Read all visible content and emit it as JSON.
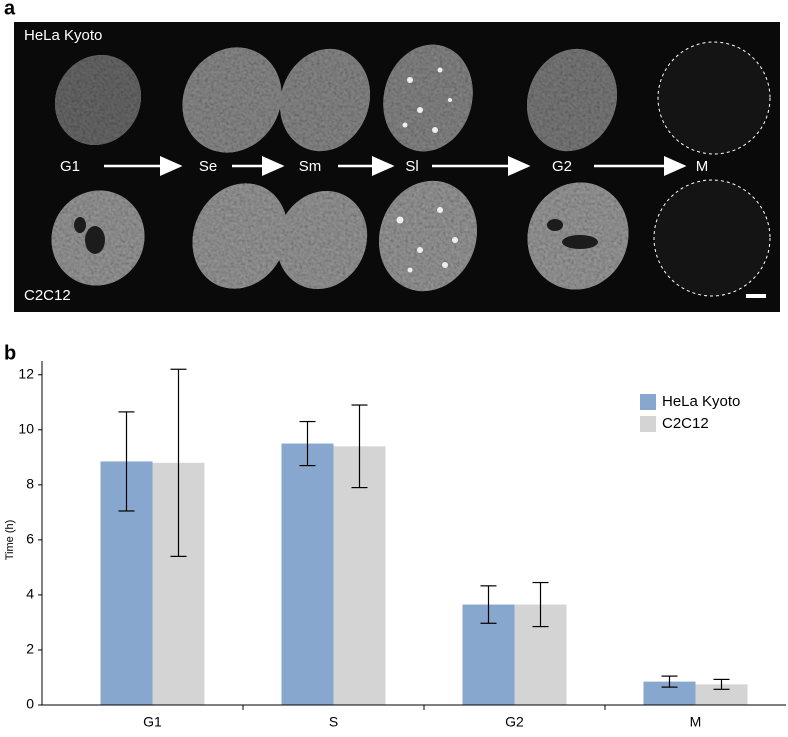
{
  "panel_a": {
    "label": "a",
    "cell_lines": [
      "HeLa Kyoto",
      "C2C12"
    ],
    "phases": [
      "G1",
      "Se",
      "Sm",
      "Sl",
      "G2",
      "M"
    ]
  },
  "panel_b": {
    "label": "b"
  },
  "chart_data": {
    "type": "bar",
    "y_label": "Time (h)",
    "categories": [
      "G1",
      "S",
      "G2",
      "M"
    ],
    "series": [
      {
        "name": "HeLa Kyoto",
        "color": "#87a7cf",
        "values": [
          8.85,
          9.5,
          3.65,
          0.85
        ],
        "errors": [
          1.8,
          0.8,
          0.68,
          0.2
        ]
      },
      {
        "name": "C2C12",
        "color": "#d4d4d4",
        "values": [
          8.8,
          9.4,
          3.65,
          0.75
        ],
        "errors": [
          3.4,
          1.5,
          0.8,
          0.18
        ]
      }
    ],
    "ylim": [
      0,
      12.5
    ],
    "yticks": [
      0,
      2,
      4,
      6,
      8,
      10,
      12
    ],
    "legend": "upper right"
  }
}
